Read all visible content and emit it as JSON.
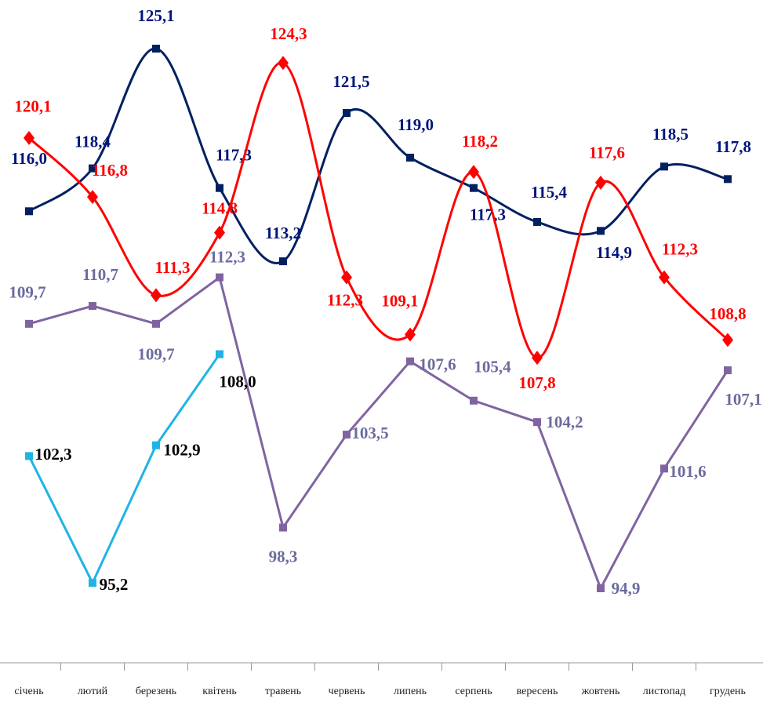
{
  "chart_data": {
    "type": "line",
    "categories": [
      "січень",
      "лютий",
      "березень",
      "квітень",
      "травень",
      "червень",
      "липень",
      "серпень",
      "вересень",
      "жовтень",
      "листопад",
      "грудень"
    ],
    "series": [
      {
        "color": "#002060",
        "label_color": "#00157a",
        "marker": "square",
        "smooth": true,
        "values": [
          116.0,
          118.4,
          125.1,
          117.3,
          113.2,
          121.5,
          119.0,
          117.3,
          115.4,
          114.9,
          118.5,
          117.8
        ],
        "value_labels": [
          "116,0",
          "118,4",
          "125,1",
          "117,3",
          "113,2",
          "121,5",
          "119,0",
          "117,3",
          "115,4",
          "114,9",
          "118,5",
          "117,8"
        ]
      },
      {
        "color": "#ff0000",
        "label_color": "#ff0000",
        "marker": "diamond",
        "smooth": true,
        "values": [
          120.1,
          116.8,
          111.3,
          114.8,
          124.3,
          112.3,
          109.1,
          118.2,
          107.8,
          117.6,
          112.3,
          108.8
        ],
        "value_labels": [
          "120,1",
          "116,8",
          "111,3",
          "114,8",
          "124,3",
          "112,3",
          "109,1",
          "118,2",
          "107,8",
          "117,6",
          "112,3",
          "108,8"
        ]
      },
      {
        "color": "#8064a2",
        "label_color": "#6b6b9e",
        "marker": "square",
        "smooth": false,
        "values": [
          109.7,
          110.7,
          109.7,
          112.3,
          98.3,
          103.5,
          107.6,
          105.4,
          104.2,
          94.9,
          101.6,
          107.1
        ],
        "value_labels": [
          "109,7",
          "110,7",
          "109,7",
          "112,3",
          "98,3",
          "103,5",
          "107,6",
          "105,4",
          "104,2",
          "94,9",
          "101,6",
          "107,1"
        ]
      },
      {
        "color": "#1eb4e6",
        "label_color": "#000000",
        "marker": "square",
        "smooth": false,
        "values": [
          102.3,
          95.2,
          102.9,
          108.0,
          null,
          null,
          null,
          null,
          null,
          null,
          null,
          null
        ],
        "value_labels": [
          "102,3",
          "95,2",
          "102,9",
          "108,0",
          null,
          null,
          null,
          null,
          null,
          null,
          null,
          null
        ]
      }
    ]
  }
}
